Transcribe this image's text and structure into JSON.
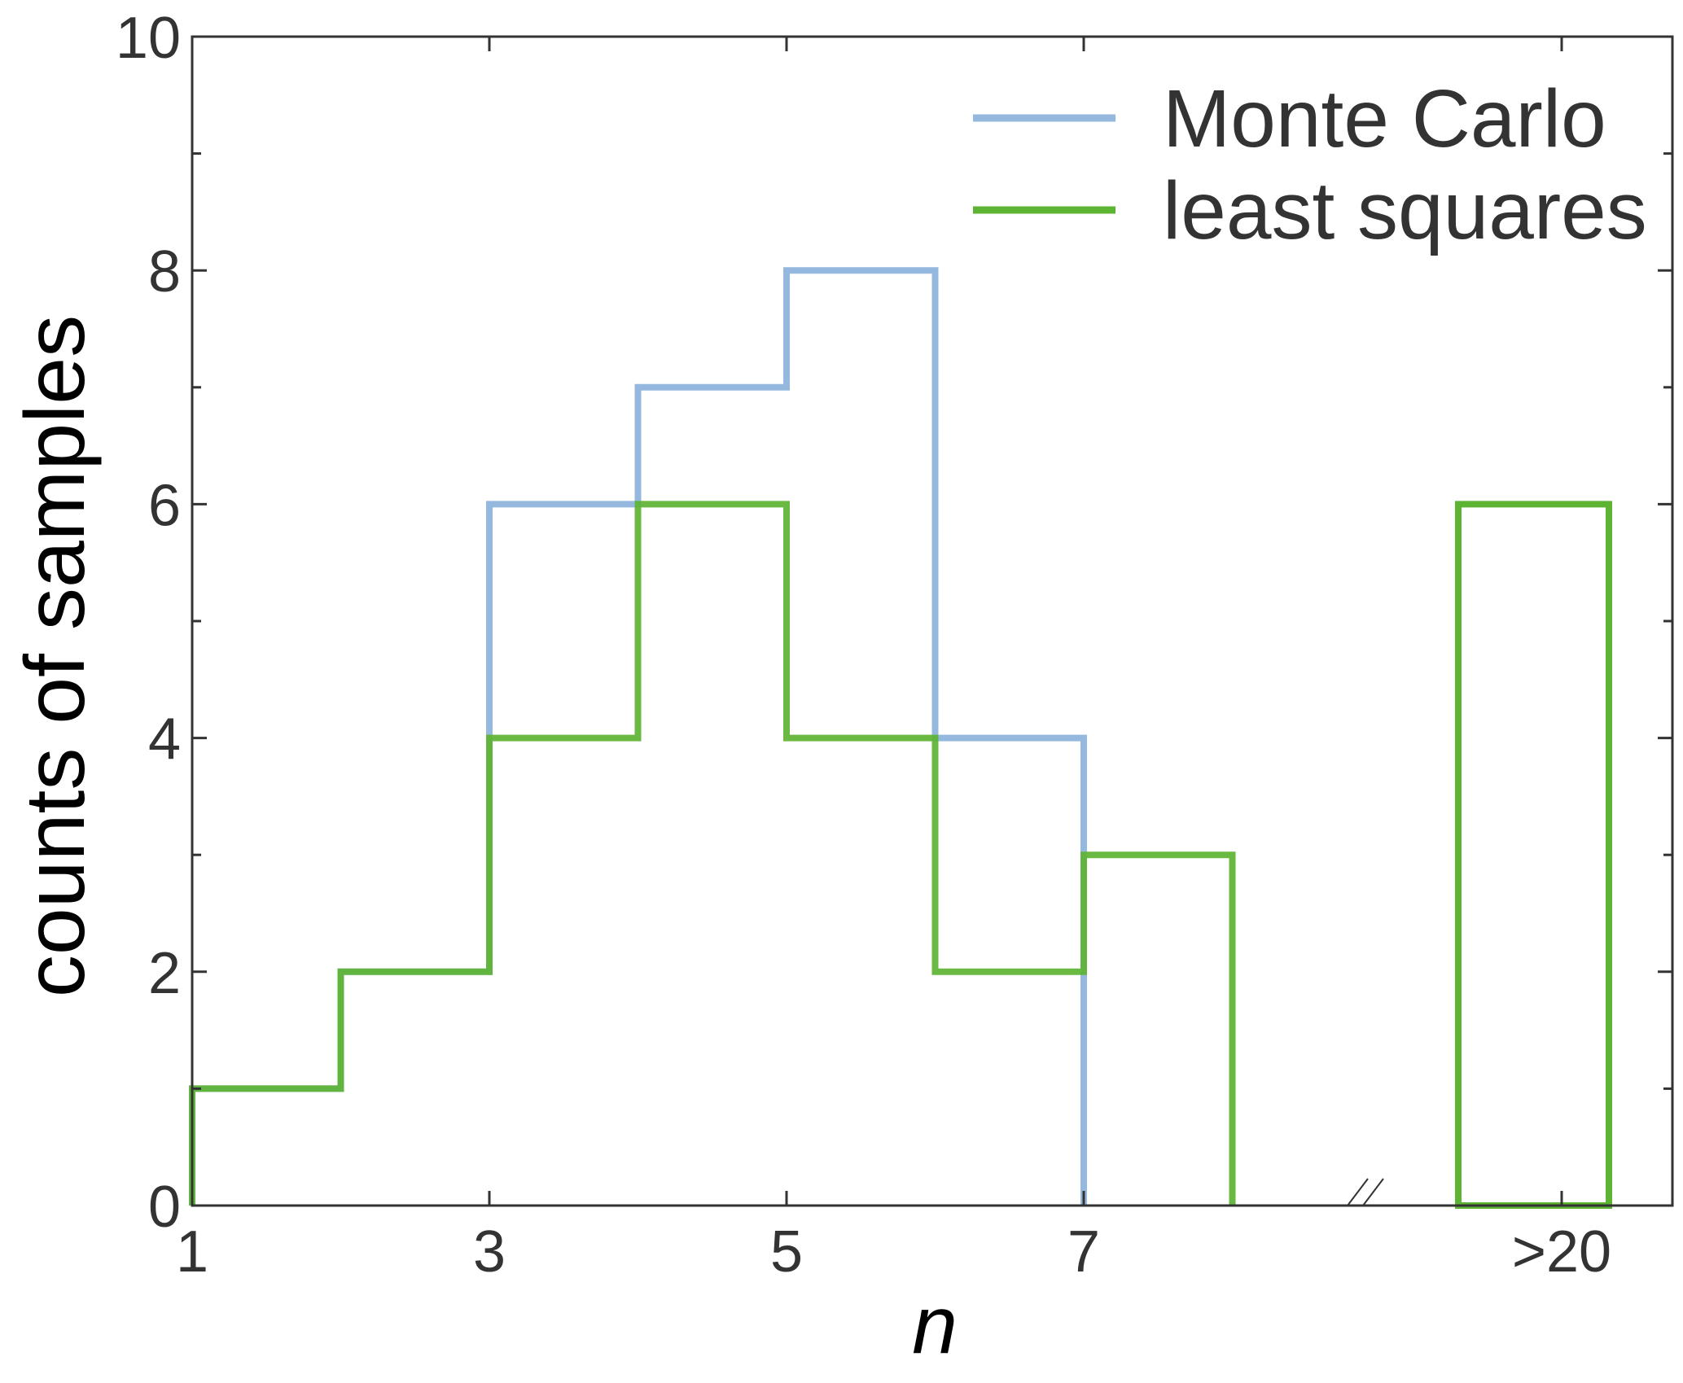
{
  "chart_data": {
    "type": "histogram-step",
    "xlabel": "n",
    "ylabel": "counts of samples",
    "ylim": [
      0,
      10
    ],
    "y_ticks": [
      "0",
      "2",
      "4",
      "6",
      "8",
      "10"
    ],
    "x_ticks": [
      "1",
      "3",
      "5",
      "7",
      ">20"
    ],
    "axis_break": "between 8 and >20",
    "legend_position": "top-right",
    "grid": false,
    "series": [
      {
        "name": "Monte Carlo",
        "color": "#94b8de",
        "bins": [
          {
            "from": 1,
            "to": 2,
            "count": 1
          },
          {
            "from": 2,
            "to": 3,
            "count": 2
          },
          {
            "from": 3,
            "to": 4,
            "count": 6
          },
          {
            "from": 4,
            "to": 5,
            "count": 7
          },
          {
            "from": 5,
            "to": 6,
            "count": 8
          },
          {
            "from": 6,
            "to": 7,
            "count": 4
          }
        ]
      },
      {
        "name": "least squares",
        "color": "#5db332",
        "bins": [
          {
            "from": 1,
            "to": 2,
            "count": 1
          },
          {
            "from": 2,
            "to": 3,
            "count": 2
          },
          {
            "from": 3,
            "to": 4,
            "count": 4
          },
          {
            "from": 4,
            "to": 5,
            "count": 6
          },
          {
            "from": 5,
            "to": 6,
            "count": 4
          },
          {
            "from": 6,
            "to": 7,
            "count": 2
          },
          {
            "from": 7,
            "to": 8,
            "count": 3
          }
        ],
        "overflow_bin": {
          "label": ">20",
          "count": 6
        }
      }
    ]
  }
}
